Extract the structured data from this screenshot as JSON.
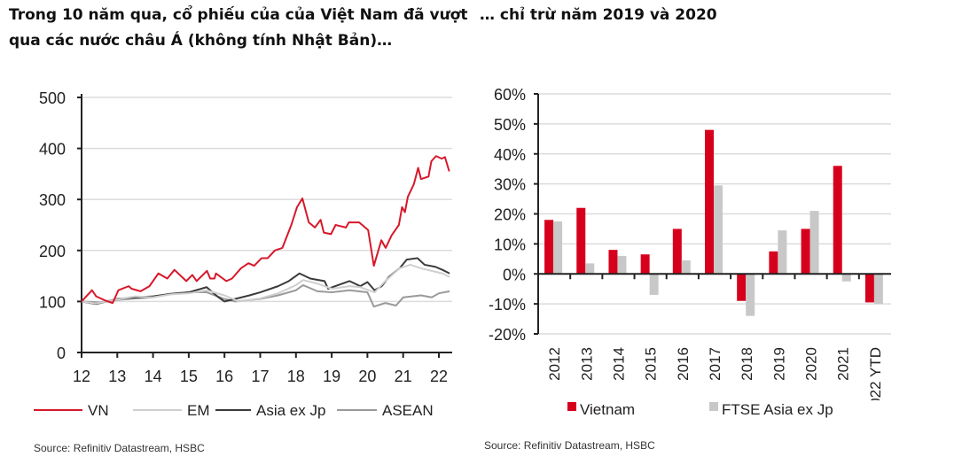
{
  "titles": {
    "left": "Trong 10 năm qua, cổ phiếu của của Việt Nam đã vượt qua các nước châu Á (không tính Nhật Bản)…",
    "right": "… chỉ trừ năm 2019 và 2020"
  },
  "chart_data": [
    {
      "type": "line",
      "title": "",
      "xlabel": "",
      "ylabel": "",
      "xlim": [
        12,
        22.3
      ],
      "ylim": [
        0,
        500
      ],
      "yticks": [
        0,
        100,
        200,
        300,
        400,
        500
      ],
      "xticks": [
        "12",
        "13",
        "14",
        "15",
        "16",
        "17",
        "18",
        "19",
        "20",
        "21",
        "22"
      ],
      "grid": true,
      "legend_position": "bottom",
      "series": [
        {
          "name": "VN",
          "color": "#d7182a",
          "points": [
            [
              12,
              100
            ],
            [
              12.29,
              122
            ],
            [
              12.41,
              110
            ],
            [
              12.66,
              102
            ],
            [
              12.87,
              97
            ],
            [
              13.03,
              122
            ],
            [
              13.32,
              130
            ],
            [
              13.4,
              125
            ],
            [
              13.65,
              120
            ],
            [
              13.9,
              130
            ],
            [
              14.15,
              155
            ],
            [
              14.4,
              145
            ],
            [
              14.6,
              162
            ],
            [
              14.93,
              140
            ],
            [
              15.1,
              152
            ],
            [
              15.22,
              140
            ],
            [
              15.51,
              160
            ],
            [
              15.6,
              145
            ],
            [
              15.72,
              145
            ],
            [
              15.76,
              155
            ],
            [
              16.05,
              140
            ],
            [
              16.21,
              145
            ],
            [
              16.46,
              165
            ],
            [
              16.67,
              175
            ],
            [
              16.83,
              170
            ],
            [
              17.04,
              185
            ],
            [
              17.21,
              185
            ],
            [
              17.41,
              200
            ],
            [
              17.62,
              205
            ],
            [
              17.87,
              250
            ],
            [
              18.03,
              285
            ],
            [
              18.18,
              302
            ],
            [
              18.36,
              255
            ],
            [
              18.53,
              245
            ],
            [
              18.69,
              260
            ],
            [
              18.78,
              235
            ],
            [
              18.98,
              232
            ],
            [
              19.11,
              250
            ],
            [
              19.4,
              245
            ],
            [
              19.48,
              255
            ],
            [
              19.77,
              255
            ],
            [
              20.02,
              240
            ],
            [
              20.18,
              170
            ],
            [
              20.39,
              220
            ],
            [
              20.51,
              205
            ],
            [
              20.68,
              230
            ],
            [
              20.88,
              250
            ],
            [
              20.97,
              285
            ],
            [
              21.05,
              275
            ],
            [
              21.13,
              305
            ],
            [
              21.3,
              330
            ],
            [
              21.42,
              362
            ],
            [
              21.5,
              340
            ],
            [
              21.71,
              345
            ],
            [
              21.79,
              375
            ],
            [
              21.92,
              385
            ],
            [
              22.08,
              380
            ],
            [
              22.17,
              383
            ],
            [
              22.29,
              355
            ]
          ]
        },
        {
          "name": "EM",
          "color": "#cfcfcf",
          "points": [
            [
              12,
              100
            ],
            [
              12.4,
              96
            ],
            [
              13,
              104
            ],
            [
              13.5,
              110
            ],
            [
              14,
              108
            ],
            [
              14.5,
              114
            ],
            [
              15,
              116
            ],
            [
              15.5,
              122
            ],
            [
              16,
              112
            ],
            [
              16.4,
              100
            ],
            [
              17,
              106
            ],
            [
              17.5,
              116
            ],
            [
              18,
              132
            ],
            [
              18.2,
              142
            ],
            [
              18.6,
              135
            ],
            [
              19,
              125
            ],
            [
              19.5,
              130
            ],
            [
              19.8,
              128
            ],
            [
              20.2,
              118
            ],
            [
              20.5,
              140
            ],
            [
              20.9,
              165
            ],
            [
              21.2,
              172
            ],
            [
              21.5,
              165
            ],
            [
              21.8,
              160
            ],
            [
              22.1,
              155
            ],
            [
              22.3,
              148
            ]
          ]
        },
        {
          "name": "Asia ex Jp",
          "color": "#3a3a3a",
          "points": [
            [
              12,
              100
            ],
            [
              12.4,
              95
            ],
            [
              12.7,
              100
            ],
            [
              13,
              105
            ],
            [
              13.5,
              108
            ],
            [
              14,
              110
            ],
            [
              14.5,
              115
            ],
            [
              15,
              118
            ],
            [
              15.5,
              128
            ],
            [
              15.8,
              110
            ],
            [
              16,
              100
            ],
            [
              16.3,
              105
            ],
            [
              16.7,
              112
            ],
            [
              17,
              118
            ],
            [
              17.5,
              130
            ],
            [
              17.8,
              140
            ],
            [
              18.1,
              155
            ],
            [
              18.4,
              145
            ],
            [
              18.8,
              140
            ],
            [
              18.9,
              125
            ],
            [
              19.3,
              135
            ],
            [
              19.5,
              140
            ],
            [
              19.8,
              130
            ],
            [
              20,
              138
            ],
            [
              20.2,
              122
            ],
            [
              20.4,
              130
            ],
            [
              20.6,
              148
            ],
            [
              20.9,
              165
            ],
            [
              21.1,
              182
            ],
            [
              21.4,
              185
            ],
            [
              21.6,
              172
            ],
            [
              21.9,
              168
            ],
            [
              22.1,
              162
            ],
            [
              22.3,
              155
            ]
          ]
        },
        {
          "name": "ASEAN",
          "color": "#9a9a9a",
          "points": [
            [
              12,
              100
            ],
            [
              12.5,
              98
            ],
            [
              13,
              103
            ],
            [
              13.5,
              106
            ],
            [
              14,
              108
            ],
            [
              14.5,
              115
            ],
            [
              15,
              118
            ],
            [
              15.5,
              118
            ],
            [
              16,
              105
            ],
            [
              16.3,
              100
            ],
            [
              17,
              105
            ],
            [
              17.5,
              112
            ],
            [
              18,
              122
            ],
            [
              18.2,
              132
            ],
            [
              18.6,
              120
            ],
            [
              19,
              118
            ],
            [
              19.5,
              122
            ],
            [
              20,
              118
            ],
            [
              20.18,
              90
            ],
            [
              20.5,
              97
            ],
            [
              20.8,
              92
            ],
            [
              21,
              108
            ],
            [
              21.5,
              112
            ],
            [
              21.8,
              108
            ],
            [
              22,
              116
            ],
            [
              22.3,
              120
            ]
          ]
        }
      ],
      "source": "Source: Refinitiv Datastream, HSBC"
    },
    {
      "type": "bar",
      "title": "",
      "xlabel": "",
      "ylabel": "",
      "ylim": [
        -20,
        60
      ],
      "yticks": [
        "-20%",
        "-10%",
        "0%",
        "10%",
        "20%",
        "30%",
        "40%",
        "50%",
        "60%"
      ],
      "categories": [
        "2012",
        "2013",
        "2014",
        "2015",
        "2016",
        "2017",
        "2018",
        "2019",
        "2020",
        "2021",
        "2022 YTD"
      ],
      "grid": true,
      "legend_position": "bottom",
      "series": [
        {
          "name": "Vietnam",
          "color": "#d7001c",
          "values": [
            18,
            22,
            8,
            6.5,
            15,
            48,
            -9,
            7.5,
            15,
            36,
            -9.5
          ]
        },
        {
          "name": "FTSE Asia ex Jp",
          "color": "#c8c8c8",
          "values": [
            17.5,
            3.5,
            6,
            -7,
            4.5,
            29.5,
            -14,
            14.5,
            21,
            -2.5,
            -10
          ]
        }
      ],
      "source": "Source: Refinitiv Datastream, HSBC"
    }
  ]
}
